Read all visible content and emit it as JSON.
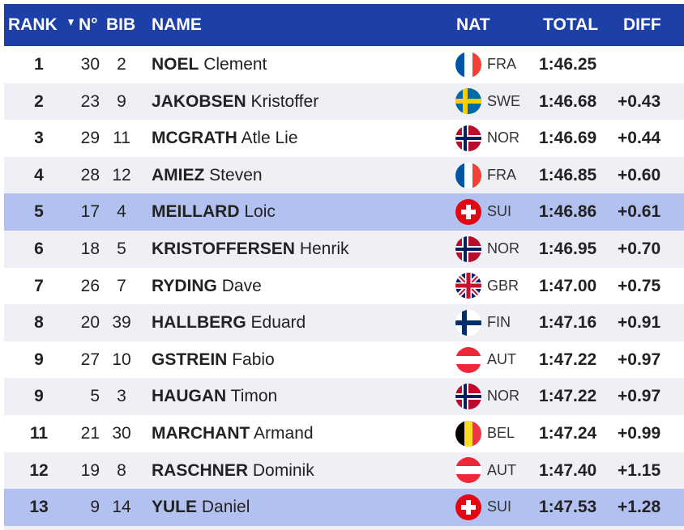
{
  "table": {
    "header": {
      "rank": "RANK",
      "no": "N°",
      "bib": "BIB",
      "name": "NAME",
      "nat": "NAT",
      "total": "TOTAL",
      "diff": "DIFF"
    },
    "rows": [
      {
        "rank": 1,
        "no": 30,
        "bib": 2,
        "surname": "NOEL",
        "firstname": "Clement",
        "nat": "FRA",
        "total": "1:46.25",
        "diff": null
      },
      {
        "rank": 2,
        "no": 23,
        "bib": 9,
        "surname": "JAKOBSEN",
        "firstname": "Kristoffer",
        "nat": "SWE",
        "total": "1:46.68",
        "diff": "+0.43"
      },
      {
        "rank": 3,
        "no": 29,
        "bib": 11,
        "surname": "MCGRATH",
        "firstname": "Atle Lie",
        "nat": "NOR",
        "total": "1:46.69",
        "diff": "+0.44"
      },
      {
        "rank": 4,
        "no": 28,
        "bib": 12,
        "surname": "AMIEZ",
        "firstname": "Steven",
        "nat": "FRA",
        "total": "1:46.85",
        "diff": "+0.60"
      },
      {
        "rank": 5,
        "no": 17,
        "bib": 4,
        "surname": "MEILLARD",
        "firstname": "Loic",
        "nat": "SUI",
        "total": "1:46.86",
        "diff": "+0.61",
        "highlighted": true
      },
      {
        "rank": 6,
        "no": 18,
        "bib": 5,
        "surname": "KRISTOFFERSEN",
        "firstname": "Henrik",
        "nat": "NOR",
        "total": "1:46.95",
        "diff": "+0.70"
      },
      {
        "rank": 7,
        "no": 26,
        "bib": 7,
        "surname": "RYDING",
        "firstname": "Dave",
        "nat": "GBR",
        "total": "1:47.00",
        "diff": "+0.75"
      },
      {
        "rank": 8,
        "no": 20,
        "bib": 39,
        "surname": "HALLBERG",
        "firstname": "Eduard",
        "nat": "FIN",
        "total": "1:47.16",
        "diff": "+0.91"
      },
      {
        "rank": 9,
        "no": 27,
        "bib": 10,
        "surname": "GSTREIN",
        "firstname": "Fabio",
        "nat": "AUT",
        "total": "1:47.22",
        "diff": "+0.97"
      },
      {
        "rank": 9,
        "no": 5,
        "bib": 3,
        "surname": "HAUGAN",
        "firstname": "Timon",
        "nat": "NOR",
        "total": "1:47.22",
        "diff": "+0.97"
      },
      {
        "rank": 11,
        "no": 21,
        "bib": 30,
        "surname": "MARCHANT",
        "firstname": "Armand",
        "nat": "BEL",
        "total": "1:47.24",
        "diff": "+0.99"
      },
      {
        "rank": 12,
        "no": 19,
        "bib": 8,
        "surname": "RASCHNER",
        "firstname": "Dominik",
        "nat": "AUT",
        "total": "1:47.40",
        "diff": "+1.15"
      },
      {
        "rank": 13,
        "no": 9,
        "bib": 14,
        "surname": "YULE",
        "firstname": "Daniel",
        "nat": "SUI",
        "total": "1:47.53",
        "diff": "+1.28",
        "highlighted": true
      }
    ]
  }
}
